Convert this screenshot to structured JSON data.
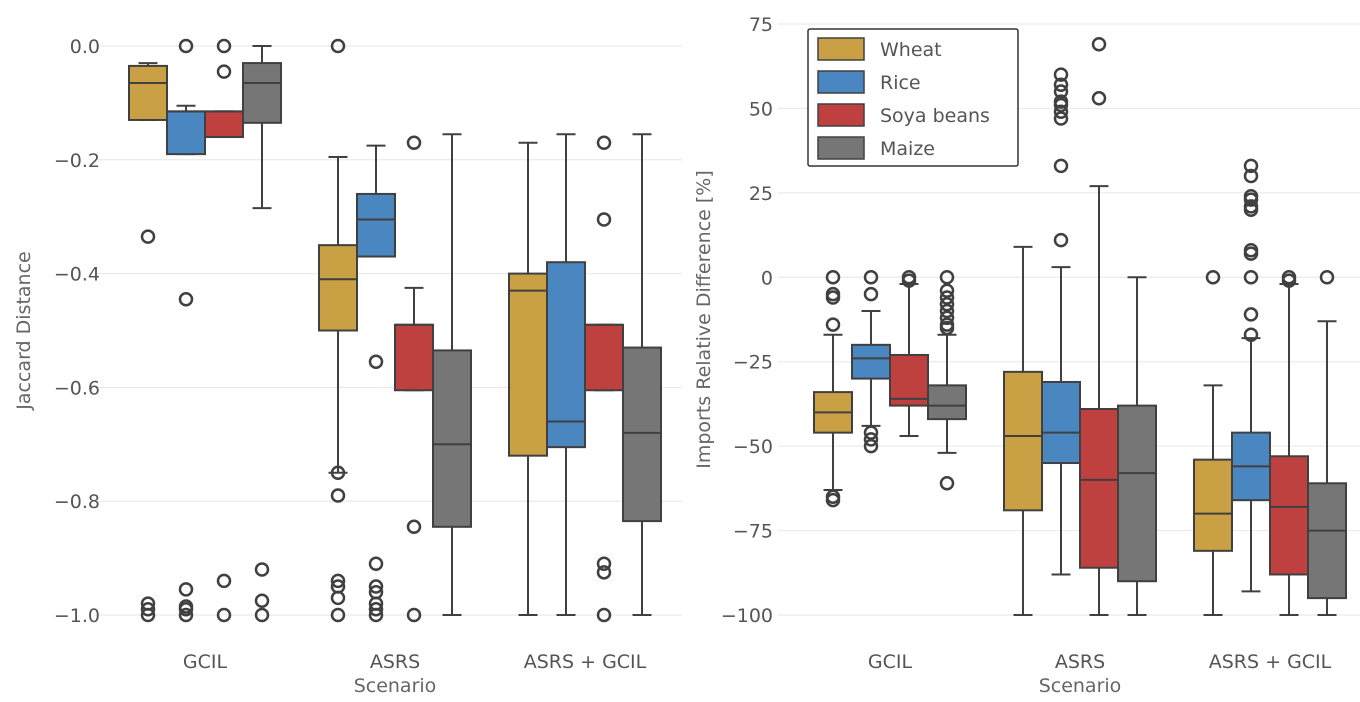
{
  "colors": {
    "Wheat": "#C9A144",
    "Rice": "#4A86C0",
    "Soya beans": "#BE4140",
    "Maize": "#767676",
    "line": "#404040"
  },
  "chart_data": [
    {
      "type": "box",
      "xlabel": "Scenario",
      "ylabel": "Jaccard Distance",
      "categories": [
        "GCIL",
        "ASRS",
        "ASRS + GCIL"
      ],
      "ylim": [
        -1.0,
        0.0
      ],
      "yticks": [
        0.0,
        -0.2,
        -0.4,
        -0.6,
        -0.8,
        -1.0
      ],
      "ytick_labels": [
        "0.0",
        "−0.2",
        "−0.4",
        "−0.6",
        "−0.8",
        "−1.0"
      ],
      "grid": true,
      "series": [
        {
          "name": "Wheat",
          "boxes": [
            {
              "whislo": -0.13,
              "q1": -0.13,
              "med": -0.065,
              "q3": -0.035,
              "whishi": -0.03,
              "fliers": [
                -0.335,
                -0.98,
                -0.99,
                -1.0
              ]
            },
            {
              "whislo": -0.75,
              "q1": -0.5,
              "med": -0.41,
              "q3": -0.35,
              "whislo_": null,
              "whishi": -0.195,
              "fliers": [
                0.0,
                -0.75,
                -0.79,
                -0.94,
                -0.95,
                -0.97,
                -1.0
              ]
            },
            {
              "whislo": -1.0,
              "q1": -0.72,
              "med": -0.43,
              "q3": -0.4,
              "whishi": -0.17,
              "fliers": []
            }
          ]
        },
        {
          "name": "Rice",
          "boxes": [
            {
              "whislo": -0.19,
              "q1": -0.19,
              "med": -0.115,
              "q3": -0.115,
              "whishi": -0.105,
              "fliers": [
                0.0,
                -0.445,
                -0.955,
                -0.985,
                -0.99,
                -1.0
              ]
            },
            {
              "whislo": -0.37,
              "q1": -0.37,
              "med": -0.305,
              "q3": -0.26,
              "whishi": -0.175,
              "fliers": [
                -0.555,
                -0.91,
                -0.95,
                -0.96,
                -0.98,
                -0.99,
                -1.0
              ]
            },
            {
              "whislo": -1.0,
              "q1": -0.705,
              "med": -0.66,
              "q3": -0.38,
              "whishi": -0.155,
              "fliers": []
            }
          ]
        },
        {
          "name": "Soya beans",
          "boxes": [
            {
              "whislo": -0.16,
              "q1": -0.16,
              "med": -0.115,
              "q3": -0.115,
              "whishi": -0.115,
              "fliers": [
                0.0,
                -0.045,
                -0.94,
                -1.0
              ]
            },
            {
              "whislo": -0.605,
              "q1": -0.605,
              "med": -0.49,
              "q3": -0.49,
              "whishi": -0.425,
              "fliers": [
                -0.17,
                -0.845,
                -1.0
              ]
            },
            {
              "whislo": -0.605,
              "q1": -0.605,
              "med": -0.49,
              "q3": -0.49,
              "whishi": -0.49,
              "fliers": [
                -0.17,
                -0.305,
                -0.91,
                -0.925,
                -1.0
              ]
            }
          ]
        },
        {
          "name": "Maize",
          "boxes": [
            {
              "whislo": -0.285,
              "q1": -0.135,
              "med": -0.065,
              "q3": -0.03,
              "whishi": 0.0,
              "fliers": [
                -0.92,
                -0.975,
                -1.0
              ]
            },
            {
              "whislo": -1.0,
              "q1": -0.845,
              "med": -0.7,
              "q3": -0.535,
              "whishi": -0.155,
              "fliers": []
            },
            {
              "whislo": -1.0,
              "q1": -0.835,
              "med": -0.68,
              "q3": -0.53,
              "whishi": -0.155,
              "fliers": []
            }
          ]
        }
      ]
    },
    {
      "type": "box",
      "xlabel": "Scenario",
      "ylabel": "Imports Relative Difference [%]",
      "categories": [
        "GCIL",
        "ASRS",
        "ASRS + GCIL"
      ],
      "ylim": [
        -100,
        75
      ],
      "yticks": [
        75,
        50,
        25,
        0,
        -25,
        -50,
        -75,
        -100
      ],
      "ytick_labels": [
        "75",
        "50",
        "25",
        "0",
        "−25",
        "−50",
        "−75",
        "−100"
      ],
      "grid": true,
      "legend": {
        "placement": "top-left",
        "entries": [
          "Wheat",
          "Rice",
          "Soya beans",
          "Maize"
        ]
      },
      "series": [
        {
          "name": "Wheat",
          "boxes": [
            {
              "whislo": -63,
              "q1": -46,
              "med": -40,
              "q3": -34,
              "whishi": -17,
              "fliers": [
                0,
                -5,
                -6,
                -14,
                -65,
                -66
              ]
            },
            {
              "whislo": -100,
              "q1": -69,
              "med": -47,
              "q3": -28,
              "whishi": 9,
              "fliers": []
            },
            {
              "whislo": -100,
              "q1": -81,
              "med": -70,
              "q3": -54,
              "whishi": -32,
              "fliers": [
                0
              ]
            }
          ]
        },
        {
          "name": "Rice",
          "boxes": [
            {
              "whislo": -44,
              "q1": -30,
              "med": -24,
              "q3": -20,
              "whishi": -10,
              "fliers": [
                0,
                -5,
                -46,
                -48,
                -50
              ]
            },
            {
              "whislo": -88,
              "q1": -55,
              "med": -46,
              "q3": -31,
              "whishi": 3,
              "fliers": [
                11,
                33,
                47,
                49,
                51,
                52,
                55,
                57,
                60
              ]
            },
            {
              "whislo": -93,
              "q1": -66,
              "med": -56,
              "q3": -46,
              "whishi": -18,
              "fliers": [
                -17,
                -11,
                0,
                7,
                8,
                20,
                21,
                23,
                24,
                30,
                33
              ]
            }
          ]
        },
        {
          "name": "Soya beans",
          "boxes": [
            {
              "whislo": -47,
              "q1": -38,
              "med": -36,
              "q3": -23,
              "whishi": -2,
              "fliers": [
                0,
                -1
              ]
            },
            {
              "whislo": -100,
              "q1": -86,
              "med": -60,
              "q3": -39,
              "whishi": 27,
              "fliers": [
                53,
                69
              ]
            },
            {
              "whislo": -100,
              "q1": -88,
              "med": -68,
              "q3": -53,
              "whishi": -2,
              "fliers": [
                0,
                -1
              ]
            }
          ]
        },
        {
          "name": "Maize",
          "boxes": [
            {
              "whislo": -52,
              "q1": -42,
              "med": -38,
              "q3": -32,
              "whishi": -17,
              "fliers": [
                0,
                -4,
                -6,
                -8,
                -10,
                -12,
                -14,
                -15,
                -61
              ]
            },
            {
              "whislo": -100,
              "q1": -90,
              "med": -58,
              "q3": -38,
              "whishi": 0,
              "fliers": []
            },
            {
              "whislo": -100,
              "q1": -95,
              "med": -75,
              "q3": -61,
              "whishi": -13,
              "fliers": [
                0
              ]
            }
          ]
        }
      ]
    }
  ]
}
